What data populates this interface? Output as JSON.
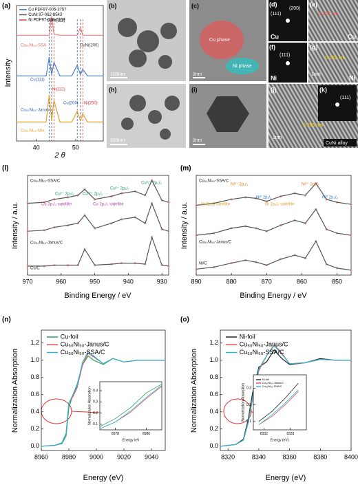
{
  "chart_data": [
    {
      "type": "line",
      "panel": "(a)",
      "xlabel": "2 θ",
      "ylabel": "Intensity",
      "xlim": [
        35,
        57
      ],
      "xticks": [
        40,
        50
      ],
      "ylim": [
        0,
        100
      ],
      "legend": "upper left",
      "x": [
        35,
        40,
        42.5,
        43.3,
        43.9,
        44.5,
        46,
        49,
        50.4,
        51.2,
        51.8,
        53,
        57
      ],
      "series": [
        {
          "color": "#f08080",
          "values": [
            78,
            78,
            78,
            78,
            92,
            79,
            78,
            78,
            78,
            84,
            78,
            78,
            78
          ]
        },
        {
          "color": "#4a7fd0",
          "values": [
            48,
            48,
            48,
            62,
            49,
            58,
            48,
            48,
            56,
            49,
            53,
            48,
            48
          ]
        },
        {
          "color": "#e0a030",
          "values": [
            14,
            14,
            14,
            34,
            15,
            30,
            14,
            14,
            22,
            15,
            20,
            14,
            14
          ]
        }
      ],
      "references": [
        {
          "name": "Cu PDF97-005-3757",
          "color": "#1f4fbf",
          "peaks": [
            43.3,
            50.4
          ]
        },
        {
          "name": "CuNi 97-062-8543",
          "color": "#444444",
          "peaks": [
            43.9,
            51.2
          ]
        },
        {
          "name": "Ni PDF97-026-0169",
          "color": "#e03030",
          "peaks": [
            44.5,
            51.8
          ]
        }
      ],
      "annotations": [
        "Cu₅₀Ni₅₀-SSA",
        "CuNi(111)",
        "CuNi(200)",
        "Cu(111)",
        "Ni(111)",
        "Cu₅₀Ni₅₀-Janus",
        "Cu(200)",
        "Ni(200)",
        "Cu₅₀Ni₅₀-Mix"
      ]
    },
    {
      "type": "line",
      "panel": "(l)",
      "xlabel": "Binding Energy / eV",
      "ylabel": "Intensity / a.u.",
      "xlim": [
        970,
        928
      ],
      "xticks": [
        970,
        960,
        950,
        940,
        930
      ],
      "ylim": [
        0,
        100
      ],
      "markers": "#f4a0a0",
      "x": [
        970,
        965,
        962,
        958,
        955,
        953,
        950,
        945,
        942,
        938,
        935,
        933,
        930,
        928
      ],
      "series": [
        {
          "color": "#555555",
          "values": [
            72,
            73,
            76,
            78,
            80,
            86,
            76,
            79,
            82,
            84,
            80,
            95,
            75,
            73
          ]
        },
        {
          "color": "#555555",
          "values": [
            44,
            45,
            48,
            50,
            52,
            60,
            47,
            52,
            56,
            58,
            52,
            72,
            46,
            44
          ]
        },
        {
          "color": "#555555",
          "values": [
            9,
            9,
            10,
            10,
            10,
            26,
            10,
            11,
            12,
            12,
            11,
            38,
            10,
            9
          ]
        }
      ],
      "annotations": [
        "Cu₅₀Ni₅₀-SSA/C",
        "Cu²⁺ 2p₁/₂",
        "Cu⁰/⁺ 2p₁/₂",
        "Cu²⁺ 2p₃/₂",
        "Cu⁰/⁺ 2p₃/₂",
        "Cu 2p₁/₂ satellite",
        "Cu 2p₃/₂ satellite",
        "Cu₅₀Ni₅₀-Janus/C",
        "Cu/C"
      ]
    },
    {
      "type": "line",
      "panel": "(m)",
      "xlabel": "Binding Energy / eV",
      "ylabel": "Intensity / a.u.",
      "xlim": [
        890,
        846
      ],
      "xticks": [
        890,
        880,
        870,
        860,
        850
      ],
      "ylim": [
        0,
        100
      ],
      "markers": "#f4a0a0",
      "x": [
        890,
        885,
        880,
        876,
        873,
        870,
        866,
        862,
        859,
        856,
        853,
        850,
        846
      ],
      "series": [
        {
          "color": "#555555",
          "values": [
            70,
            72,
            76,
            78,
            77,
            74,
            79,
            82,
            80,
            92,
            76,
            73,
            71
          ]
        },
        {
          "color": "#555555",
          "values": [
            40,
            42,
            47,
            49,
            47,
            44,
            50,
            55,
            52,
            66,
            46,
            42,
            40
          ]
        },
        {
          "color": "#555555",
          "values": [
            6,
            8,
            12,
            15,
            13,
            10,
            16,
            20,
            17,
            34,
            11,
            7,
            5
          ]
        }
      ],
      "annotations": [
        "Cu₅₀Ni₅₀-SSA/C",
        "Ni²⁺ 2p₁/₂",
        "Ni²⁺ 2p₃/₂",
        "Ni⁰ 2p₁/₂",
        "Ni⁰ 2p₃/₂",
        "Ni 2p₁/₂ satellite",
        "Ni 2p₃/₂ satellite",
        "Cu₅₀Ni₅₀-Janus/C",
        "Ni/C"
      ]
    },
    {
      "type": "line",
      "panel": "(n)",
      "xlabel": "Energy (eV)",
      "ylabel": "Normalization Absorption",
      "xlim": [
        8960,
        9050
      ],
      "xticks": [
        8960,
        8980,
        9000,
        9020,
        9040
      ],
      "ylim": [
        -0.05,
        1.35
      ],
      "yticks": [
        {
          "value": 0,
          "label": "0.0"
        },
        0.2,
        0.4,
        0.6,
        0.8,
        {
          "value": 1,
          "label": "1.0"
        },
        1.2
      ],
      "legend": "upper left",
      "x": [
        8960,
        8970,
        8975,
        8978,
        8980,
        8983,
        8986,
        8990,
        8994,
        8998,
        9005,
        9012,
        9020,
        9030,
        9040,
        9050
      ],
      "series": [
        {
          "name": "Cu-foil",
          "color": "#2ca25f",
          "values": [
            0,
            0.01,
            0.03,
            0.12,
            0.45,
            0.6,
            0.72,
            0.95,
            1.05,
            1.0,
            0.95,
            1.02,
            0.98,
            1.0,
            1.0,
            1.0
          ]
        },
        {
          "name": "Cu₅₀Ni₅₀-Janus/C",
          "color": "#e05050",
          "values": [
            0,
            0.01,
            0.04,
            0.15,
            0.5,
            0.58,
            0.68,
            0.95,
            1.08,
            1.04,
            0.96,
            1.02,
            0.98,
            1.0,
            1.0,
            1.0
          ]
        },
        {
          "name": "Cu₅₀Ni₅₀-SSA/C",
          "color": "#29b6d8",
          "values": [
            0,
            0.01,
            0.04,
            0.15,
            0.5,
            0.6,
            0.7,
            0.98,
            1.1,
            1.05,
            0.96,
            1.02,
            0.98,
            1.0,
            1.0,
            1.0
          ]
        }
      ]
    },
    {
      "type": "line",
      "xlabel": "Energy /eV",
      "ylabel": "Normalization Absorption",
      "xlim": [
        8977,
        8981
      ],
      "xticks": [
        8978,
        8980
      ],
      "ylim": [
        0.05,
        0.48
      ],
      "yticks": [
        0.1,
        0.2,
        0.3,
        0.4
      ],
      "x": [
        8977,
        8978,
        8979,
        8980,
        8981
      ],
      "series": [
        {
          "color": "#2ca25f",
          "values": [
            0.08,
            0.15,
            0.25,
            0.38,
            0.46
          ]
        },
        {
          "color": "#e05050",
          "values": [
            0.06,
            0.12,
            0.21,
            0.33,
            0.44
          ]
        },
        {
          "color": "#29b6d8",
          "values": [
            0.06,
            0.12,
            0.22,
            0.34,
            0.45
          ]
        }
      ]
    },
    {
      "type": "line",
      "panel": "(o)",
      "xlabel": "Energy (eV)",
      "ylabel": "Normalization Absorption",
      "xlim": [
        8315,
        8400
      ],
      "xticks": [
        8320,
        8340,
        8360,
        8380,
        8400
      ],
      "ylim": [
        -0.05,
        1.35
      ],
      "yticks": [
        {
          "value": 0,
          "label": "0.0"
        },
        0.2,
        0.4,
        0.6,
        0.8,
        {
          "value": 1,
          "label": "1.0"
        },
        1.2
      ],
      "legend": "upper left",
      "x": [
        8315,
        8325,
        8330,
        8333,
        8336,
        8340,
        8345,
        8350,
        8355,
        8360,
        8370,
        8380,
        8390,
        8400
      ],
      "series": [
        {
          "name": "Ni-foil",
          "color": "#222222",
          "values": [
            0,
            0.02,
            0.08,
            0.3,
            0.62,
            0.92,
            0.98,
            1.12,
            1.02,
            0.95,
            0.97,
            1.02,
            1.0,
            1.0
          ]
        },
        {
          "name": "Cu₅₀Ni₅₀-Janus/C",
          "color": "#e05050",
          "values": [
            0,
            0.02,
            0.07,
            0.26,
            0.55,
            0.88,
            1.05,
            1.18,
            1.08,
            0.96,
            0.97,
            1.01,
            1.0,
            1.0
          ]
        },
        {
          "name": "Cu₅₀Ni₅₀-SSA/C",
          "color": "#29b6d8",
          "values": [
            0,
            0.02,
            0.07,
            0.27,
            0.57,
            0.9,
            1.05,
            1.17,
            1.07,
            0.96,
            0.97,
            1.01,
            1.0,
            1.0
          ]
        }
      ]
    },
    {
      "type": "line",
      "xlabel": "Energy (eV)",
      "ylabel": "Normalization Absorption",
      "xlim": [
        8331.6,
        8333.6
      ],
      "xticks": [
        8332,
        8333
      ],
      "ylim": [
        0.05,
        0.38
      ],
      "yticks": [
        0.1,
        0.2,
        0.3
      ],
      "legend": "upper left",
      "x": [
        8331.8,
        8332.3,
        8332.8,
        8333.3
      ],
      "series": [
        {
          "name": "Ni-foil",
          "color": "#222222",
          "values": [
            0.1,
            0.16,
            0.24,
            0.33
          ]
        },
        {
          "name": "Cu₅₀Ni₅₀-Janus/C",
          "color": "#e05050",
          "values": [
            0.08,
            0.13,
            0.2,
            0.28
          ]
        },
        {
          "name": "Cu₅₀Ni₅₀-SSA/C",
          "color": "#29b6d8",
          "values": [
            0.08,
            0.14,
            0.21,
            0.29
          ]
        }
      ]
    }
  ],
  "micrographs": [
    {
      "panel": "(b)",
      "labels": [
        "100nm"
      ]
    },
    {
      "panel": "(c)",
      "labels": [
        "Cu phase",
        "Ni phase",
        "2nm"
      ]
    },
    {
      "panel": "(d)",
      "labels": [
        "(111)",
        "(200)",
        "Cu"
      ]
    },
    {
      "panel": "(e)",
      "labels": [
        "0.206 nm",
        "Cu"
      ]
    },
    {
      "panel": "(f)",
      "labels": [
        "(111)",
        "Ni"
      ]
    },
    {
      "panel": "(g)",
      "labels": [
        "0.203 nm",
        "1nm",
        "Ni"
      ]
    },
    {
      "panel": "(h)",
      "labels": [
        "100nm"
      ]
    },
    {
      "panel": "(i)",
      "labels": [
        "2nm"
      ]
    },
    {
      "panel": "(j)",
      "labels": [
        "0.205 nm",
        "1nm",
        "CuNi alloy"
      ]
    },
    {
      "panel": "(k)",
      "labels": [
        "(111)"
      ]
    }
  ]
}
